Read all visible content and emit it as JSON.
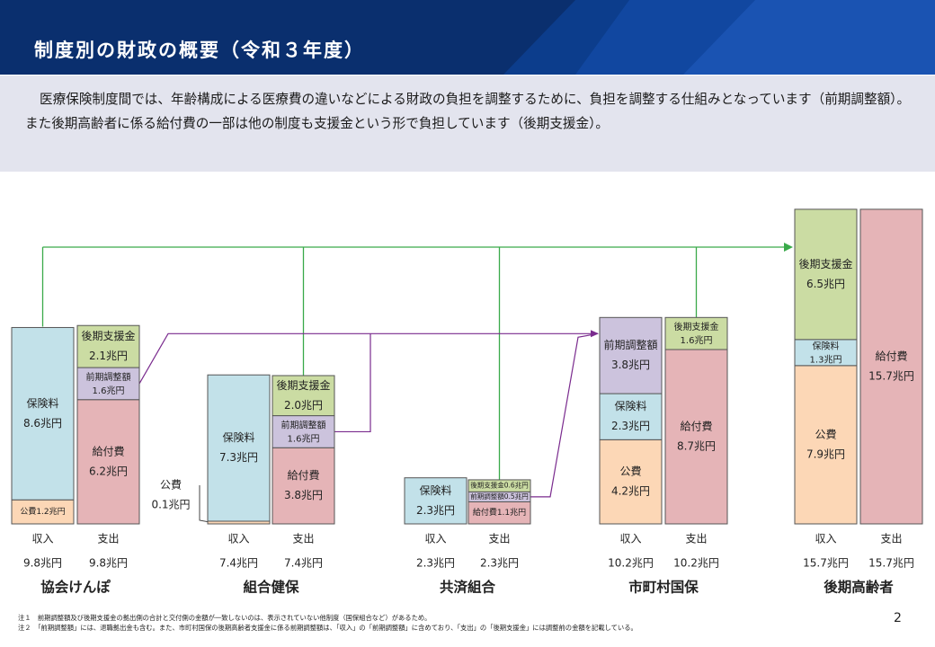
{
  "header": {
    "title": "制度別の財政の概要（令和３年度）"
  },
  "intro": {
    "text": "医療保険制度間では、年齢構成による医療費の違いなどによる財政の負担を調整するために、負担を調整する仕組みとなっています（前期調整額）。また後期高齢者に係る給付費の一部は他の制度も支援金という形で負担しています（後期支援金）。"
  },
  "colors": {
    "insurance_fee": "#c2e1e9",
    "public_fund": "#fcd7b6",
    "support_fund": "#cbdca3",
    "adjustment": "#ccc3dd",
    "benefit": "#e5b4b7",
    "connector": "#3aaa4a",
    "arrow": "#7a2b8e"
  },
  "chart_data": {
    "type": "bar",
    "unit": "兆円",
    "column_labels": {
      "income": "収入",
      "expense": "支出"
    },
    "systems": [
      {
        "name": "協会けんぽ",
        "income_total": "9.8兆円",
        "expense_total": "9.8兆円",
        "income": [
          {
            "item": "公費",
            "value": 1.2,
            "label": "1.2兆円",
            "kind": "public_fund"
          },
          {
            "item": "保険料",
            "value": 8.6,
            "label": "8.6兆円",
            "kind": "insurance_fee"
          }
        ],
        "expense": [
          {
            "item": "給付費",
            "value": 6.2,
            "label": "6.2兆円",
            "kind": "benefit"
          },
          {
            "item": "前期調整額",
            "value": 1.6,
            "label": "1.6兆円",
            "kind": "adjustment"
          },
          {
            "item": "後期支援金",
            "value": 2.1,
            "label": "2.1兆円",
            "kind": "support_fund"
          }
        ]
      },
      {
        "name": "組合健保",
        "income_total": "7.4兆円",
        "expense_total": "7.4兆円",
        "public_callout": {
          "item": "公費",
          "label": "0.1兆円"
        },
        "income": [
          {
            "item": "公費",
            "value": 0.1,
            "label": "0.1兆円",
            "kind": "public_fund"
          },
          {
            "item": "保険料",
            "value": 7.3,
            "label": "7.3兆円",
            "kind": "insurance_fee"
          }
        ],
        "expense": [
          {
            "item": "給付費",
            "value": 3.8,
            "label": "3.8兆円",
            "kind": "benefit"
          },
          {
            "item": "前期調整額",
            "value": 1.6,
            "label": "1.6兆円",
            "kind": "adjustment"
          },
          {
            "item": "後期支援金",
            "value": 2.0,
            "label": "2.0兆円",
            "kind": "support_fund"
          }
        ]
      },
      {
        "name": "共済組合",
        "income_total": "2.3兆円",
        "expense_total": "2.3兆円",
        "income": [
          {
            "item": "保険料",
            "value": 2.3,
            "label": "2.3兆円",
            "kind": "insurance_fee"
          }
        ],
        "expense": [
          {
            "item": "給付費",
            "value": 1.1,
            "label": "1.1兆円",
            "kind": "benefit"
          },
          {
            "item": "前期調整額",
            "value": 0.5,
            "label": "0.5兆円",
            "kind": "adjustment"
          },
          {
            "item": "後期支援金",
            "value": 0.6,
            "label": "0.6兆円",
            "kind": "support_fund"
          }
        ]
      },
      {
        "name": "市町村国保",
        "income_total": "10.2兆円",
        "expense_total": "10.2兆円",
        "income": [
          {
            "item": "公費",
            "value": 4.2,
            "label": "4.2兆円",
            "kind": "public_fund"
          },
          {
            "item": "保険料",
            "value": 2.3,
            "label": "2.3兆円",
            "kind": "insurance_fee"
          },
          {
            "item": "前期調整額",
            "value": 3.8,
            "label": "3.8兆円",
            "kind": "adjustment"
          }
        ],
        "expense": [
          {
            "item": "給付費",
            "value": 8.7,
            "label": "8.7兆円",
            "kind": "benefit"
          },
          {
            "item": "後期支援金",
            "value": 1.6,
            "label": "1.6兆円",
            "kind": "support_fund"
          }
        ]
      },
      {
        "name": "後期高齢者",
        "income_total": "15.7兆円",
        "expense_total": "15.7兆円",
        "income": [
          {
            "item": "公費",
            "value": 7.9,
            "label": "7.9兆円",
            "kind": "public_fund"
          },
          {
            "item": "保険料",
            "value": 1.3,
            "label": "1.3兆円",
            "kind": "insurance_fee"
          },
          {
            "item": "後期支援金",
            "value": 6.5,
            "label": "6.5兆円",
            "kind": "support_fund"
          }
        ],
        "expense": [
          {
            "item": "給付費",
            "value": 15.7,
            "label": "15.7兆円",
            "kind": "benefit"
          }
        ]
      }
    ]
  },
  "footer": {
    "note1": "注１　前期調整額及び後期支援金の拠出側の合計と交付側の金額が一致しないのは、表示されていない他制度（国保組合など）があるため。",
    "note2": "注２　「前期調整額」には、退職拠出金も含む。また、市町村国保の後期高齢者支援金に係る前期調整額は、「収入」の「前期調整額」に含めており、「支出」の「後期支援金」には調整前の金額を記載している。"
  },
  "page_number": "2"
}
